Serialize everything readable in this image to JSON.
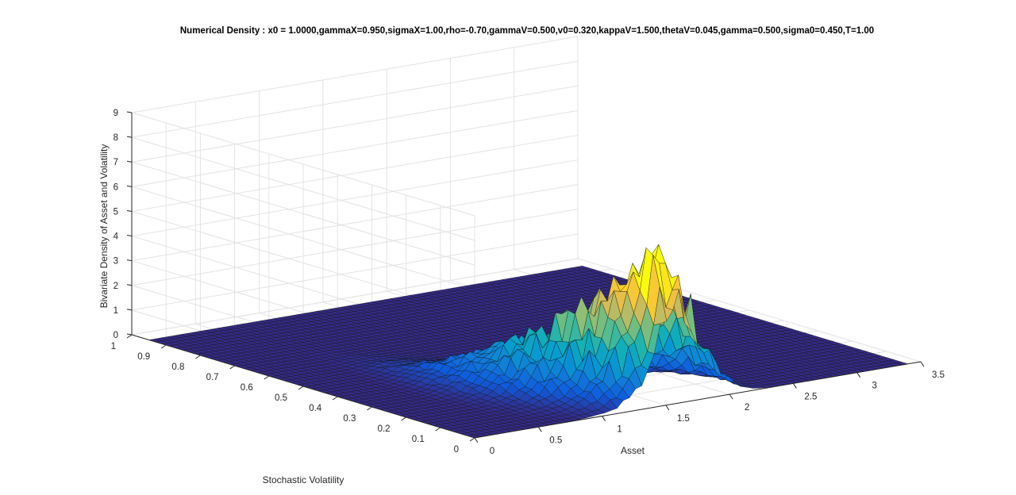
{
  "chart_data": {
    "type": "surface",
    "title": "Numerical Density : x0 = 1.0000,gammaX=0.950,sigmaX=1.00,rho=-0.70,gammaV=0.500,v0=0.320,kappaV=1.500,thetaV=0.045,gamma=0.500,sigma0=0.450,T=1.00",
    "xlabel": "Asset",
    "ylabel": "Stochastic Volatility",
    "zlabel": "Bivariate Density of Asset and Volatility",
    "xlim": [
      0,
      3.5
    ],
    "ylim": [
      0,
      1
    ],
    "zlim": [
      0,
      9
    ],
    "x_ticks": [
      "0",
      "0.5",
      "1",
      "1.5",
      "2",
      "2.5",
      "3",
      "3.5"
    ],
    "y_ticks": [
      "0",
      "0.1",
      "0.2",
      "0.3",
      "0.4",
      "0.5",
      "0.6",
      "0.7",
      "0.8",
      "0.9",
      "1"
    ],
    "z_ticks": [
      "0",
      "1",
      "2",
      "3",
      "4",
      "5",
      "6",
      "7",
      "8",
      "9"
    ],
    "grid": true,
    "colormap": "parula",
    "surface": {
      "x_range": [
        0,
        3.4
      ],
      "y_range": [
        0,
        0.95
      ],
      "peak": {
        "asset": 1.55,
        "volatility": 0.05,
        "density": 5.1
      },
      "shape": "unimodal ridge from peak near Asset 1.5, Volatility 0.05 toward Asset 0.4, Volatility 0.5; near zero elsewhere"
    }
  }
}
